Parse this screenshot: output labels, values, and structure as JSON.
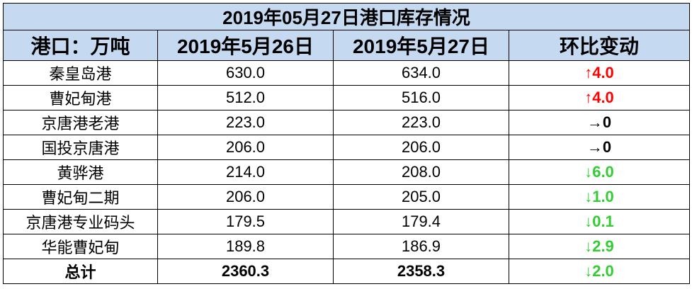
{
  "table": {
    "title": "2019年05月27日港口库存情况",
    "header": [
      "港口：万吨",
      "2019年5月26日",
      "2019年5月27日",
      "环比变动"
    ],
    "rows": [
      {
        "port": "秦皇岛港",
        "prev": "630.0",
        "curr": "634.0",
        "change": "↑4.0",
        "color": "#ff0000"
      },
      {
        "port": "曹妃甸港",
        "prev": "512.0",
        "curr": "516.0",
        "change": "↑4.0",
        "color": "#ff0000"
      },
      {
        "port": "京唐港老港",
        "prev": "223.0",
        "curr": "223.0",
        "change": "→0",
        "color": "#000000"
      },
      {
        "port": "国投京唐港",
        "prev": "206.0",
        "curr": "206.0",
        "change": "→0",
        "color": "#000000"
      },
      {
        "port": "黄骅港",
        "prev": "214.0",
        "curr": "208.0",
        "change": "↓6.0",
        "color": "#33cc33"
      },
      {
        "port": "曹妃甸二期",
        "prev": "206.0",
        "curr": "205.0",
        "change": "↓1.0",
        "color": "#33cc33"
      },
      {
        "port": "京唐港专业码头",
        "prev": "179.5",
        "curr": "179.4",
        "change": "↓0.1",
        "color": "#33cc33"
      },
      {
        "port": "华能曹妃甸",
        "prev": "189.8",
        "curr": "186.9",
        "change": "↓2.9",
        "color": "#33cc33"
      }
    ],
    "total": {
      "port": "总计",
      "prev": "2360.3",
      "curr": "2358.3",
      "change": "↓2.0",
      "color": "#33cc33"
    }
  }
}
